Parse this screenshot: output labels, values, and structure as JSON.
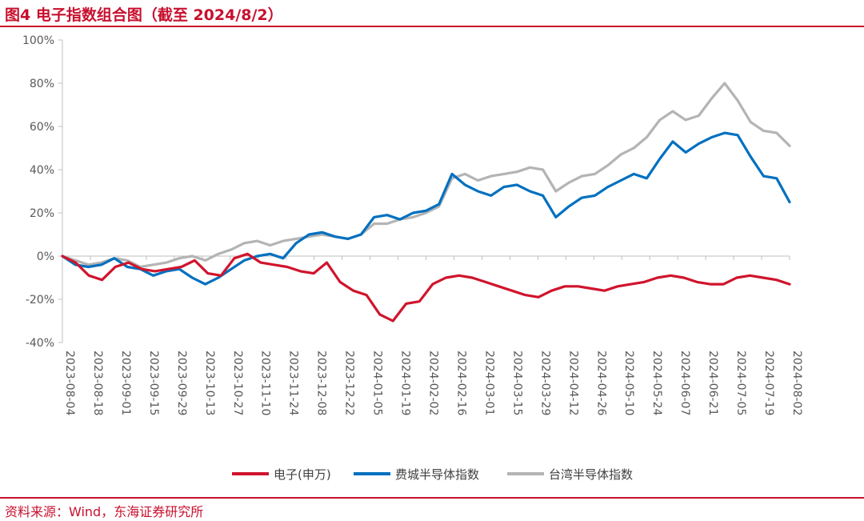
{
  "title": "图4  电子指数组合图（截至 2024/8/2）",
  "source": "资料来源：Wind，东海证券研究所",
  "chart_data": {
    "type": "line",
    "x_tick_labels": [
      "2023-08-04",
      "2023-08-18",
      "2023-09-01",
      "2023-09-15",
      "2023-09-29",
      "2023-10-13",
      "2023-10-27",
      "2023-11-10",
      "2023-11-24",
      "2023-12-08",
      "2023-12-22",
      "2024-01-05",
      "2024-01-19",
      "2024-02-02",
      "2024-02-16",
      "2024-03-01",
      "2024-03-15",
      "2024-03-29",
      "2024-04-12",
      "2024-04-26",
      "2024-05-10",
      "2024-05-24",
      "2024-06-07",
      "2024-06-21",
      "2024-07-05",
      "2024-07-19",
      "2024-08-02"
    ],
    "y_tick_labels": [
      "100%",
      "80%",
      "60%",
      "40%",
      "20%",
      "0%",
      "-20%",
      "-40%"
    ],
    "y_ticks": [
      100,
      80,
      60,
      40,
      20,
      0,
      -20,
      -40
    ],
    "ylim": [
      -40,
      100
    ],
    "grid": false,
    "legend_position": "bottom",
    "series": [
      {
        "name": "电子(申万)",
        "color": "#d0142c",
        "values": [
          0,
          -3,
          -9,
          -11,
          -5,
          -3,
          -6,
          -7,
          -6,
          -5,
          -2,
          -8,
          -9,
          -1,
          1,
          -3,
          -4,
          -5,
          -7,
          -8,
          -3,
          -12,
          -16,
          -18,
          -27,
          -30,
          -22,
          -21,
          -13,
          -10,
          -9,
          -10,
          -12,
          -14,
          -16,
          -18,
          -19,
          -16,
          -14,
          -14,
          -15,
          -16,
          -14,
          -13,
          -12,
          -10,
          -9,
          -10,
          -12,
          -13,
          -13,
          -10,
          -9,
          -10,
          -11,
          -13
        ]
      },
      {
        "name": "费城半导体指数",
        "color": "#0070c0",
        "values": [
          0,
          -4,
          -5,
          -4,
          -1,
          -5,
          -6,
          -9,
          -7,
          -6,
          -10,
          -13,
          -10,
          -6,
          -2,
          0,
          1,
          -1,
          6,
          10,
          11,
          9,
          8,
          10,
          18,
          19,
          17,
          20,
          21,
          24,
          38,
          33,
          30,
          28,
          32,
          33,
          30,
          28,
          18,
          23,
          27,
          28,
          32,
          35,
          38,
          36,
          45,
          53,
          48,
          52,
          55,
          57,
          56,
          46,
          37,
          36,
          25
        ]
      },
      {
        "name": "台湾半导体指数",
        "color": "#b4b4b4",
        "values": [
          0,
          -2,
          -4,
          -3,
          -1,
          -2,
          -5,
          -4,
          -3,
          -1,
          0,
          -2,
          1,
          3,
          6,
          7,
          5,
          7,
          8,
          9,
          10,
          9,
          8,
          10,
          15,
          15,
          17,
          18,
          20,
          23,
          36,
          38,
          35,
          37,
          38,
          39,
          41,
          40,
          30,
          34,
          37,
          38,
          42,
          47,
          50,
          55,
          63,
          67,
          63,
          65,
          73,
          80,
          72,
          62,
          58,
          57,
          51
        ]
      }
    ]
  }
}
